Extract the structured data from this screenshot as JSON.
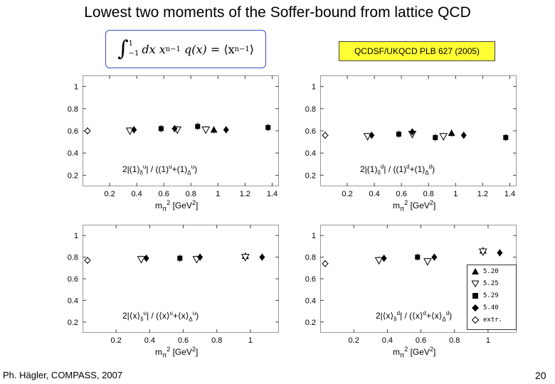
{
  "slide": {
    "title": "Lowest two moments of the Soffer-bound from lattice QCD",
    "reference": "QCDSF/UKQCD PLB 627 (2005)",
    "footer_left": "Ph. Hägler, COMPASS, 2007",
    "page_number": "20"
  },
  "formula": {
    "upper": "1",
    "lower": "−1",
    "body": "dx x",
    "exp": "n−1",
    "q": "q(x)",
    "equals": "=",
    "rhs_open": "⟨x",
    "rhs_close": "⟩"
  },
  "legend": {
    "items": [
      {
        "label": "5.20",
        "marker": "triangle-up"
      },
      {
        "label": "5.25",
        "marker": "triangle-down"
      },
      {
        "label": "5.29",
        "marker": "square"
      },
      {
        "label": "5.40",
        "marker": "diamond"
      },
      {
        "label": "extr.",
        "marker": "diamond-open"
      }
    ]
  },
  "panel_labels": {
    "xaxis_prefix": "m",
    "xaxis_sub": "π",
    "xaxis_sup": "2",
    "xaxis_unit": "[GeV",
    "xaxis_unit_sup": "2",
    "xaxis_close": "]",
    "tl": {
      "num": "2|(1)",
      "num_sup": "u",
      "num_sub": "δ",
      "sep": "| / ((1)",
      "a_sup": "u",
      "plus": "+(1)",
      "b_sup": "u",
      "b_sub": "Δ",
      "close": ")"
    },
    "tr": {
      "num": "2|(1)",
      "num_sup": "d",
      "num_sub": "δ",
      "sep": "| / ((1)",
      "a_sup": "d",
      "plus": "+(1)",
      "b_sup": "d",
      "b_sub": "Δ",
      "close": ")"
    },
    "bl": {
      "num": "2|⟨x⟩",
      "num_sup": "u",
      "num_sub": "δ",
      "sep": "| / (⟨x⟩",
      "a_sup": "u",
      "plus": "+⟨x⟩",
      "b_sup": "u",
      "b_sub": "Δ",
      "close": ")"
    },
    "br": {
      "num": "2|⟨x⟩",
      "num_sup": "d",
      "num_sub": "δ",
      "sep": "| / (⟨x⟩",
      "a_sup": "d",
      "plus": "+⟨x⟩",
      "b_sup": "d",
      "b_sub": "Δ",
      "close": ")"
    }
  },
  "chart_data": [
    {
      "type": "scatter",
      "panel": "top-left",
      "xlim": [
        0,
        1.45
      ],
      "ylim": [
        0.1,
        1.1
      ],
      "xticks": [
        0.2,
        0.4,
        0.6,
        0.8,
        1,
        1.2,
        1.4
      ],
      "yticks": [
        0.2,
        0.4,
        0.6,
        0.8,
        1
      ],
      "series": [
        {
          "name": "5.20",
          "marker": "triangle-up",
          "points": [
            [
              0.97,
              0.61
            ]
          ]
        },
        {
          "name": "5.25",
          "marker": "triangle-down",
          "points": [
            [
              0.35,
              0.6
            ],
            [
              0.7,
              0.61
            ],
            [
              0.91,
              0.61
            ]
          ]
        },
        {
          "name": "5.29",
          "marker": "square",
          "points": [
            [
              0.58,
              0.62
            ],
            [
              0.85,
              0.64
            ],
            [
              1.37,
              0.63
            ]
          ]
        },
        {
          "name": "5.40",
          "marker": "diamond",
          "points": [
            [
              0.38,
              0.61
            ],
            [
              0.68,
              0.62
            ],
            [
              1.06,
              0.61
            ]
          ]
        },
        {
          "name": "extr.",
          "marker": "diamond-open",
          "points": [
            [
              0.0,
              0.6
            ]
          ]
        }
      ]
    },
    {
      "type": "scatter",
      "panel": "top-right",
      "xlim": [
        0,
        1.45
      ],
      "ylim": [
        0.1,
        1.1
      ],
      "xticks": [
        0.2,
        0.4,
        0.6,
        0.8,
        1,
        1.2,
        1.4
      ],
      "yticks": [
        0.2,
        0.4,
        0.6,
        0.8,
        1
      ],
      "series": [
        {
          "name": "5.20",
          "marker": "triangle-up",
          "points": [
            [
              0.97,
              0.58
            ]
          ]
        },
        {
          "name": "5.25",
          "marker": "triangle-down",
          "points": [
            [
              0.35,
              0.55
            ],
            [
              0.68,
              0.57
            ],
            [
              0.91,
              0.55
            ]
          ]
        },
        {
          "name": "5.29",
          "marker": "square",
          "points": [
            [
              0.58,
              0.57
            ],
            [
              0.85,
              0.54
            ],
            [
              1.37,
              0.54
            ]
          ]
        },
        {
          "name": "5.40",
          "marker": "diamond",
          "points": [
            [
              0.38,
              0.56
            ],
            [
              0.68,
              0.59
            ],
            [
              1.06,
              0.56
            ]
          ]
        },
        {
          "name": "extr.",
          "marker": "diamond-open",
          "points": [
            [
              0.0,
              0.56
            ]
          ]
        }
      ]
    },
    {
      "type": "scatter",
      "panel": "bottom-left",
      "xlim": [
        0,
        1.17
      ],
      "ylim": [
        0.1,
        1.1
      ],
      "xticks": [
        0.2,
        0.4,
        0.6,
        0.8,
        1
      ],
      "yticks": [
        0.2,
        0.4,
        0.6,
        0.8,
        1
      ],
      "series": [
        {
          "name": "5.20",
          "marker": "triangle-up",
          "points": [
            [
              0.97,
              0.81
            ]
          ]
        },
        {
          "name": "5.25",
          "marker": "triangle-down",
          "points": [
            [
              0.35,
              0.78
            ],
            [
              0.68,
              0.78
            ],
            [
              0.97,
              0.8
            ]
          ]
        },
        {
          "name": "5.29",
          "marker": "square",
          "points": [
            [
              0.58,
              0.79
            ]
          ]
        },
        {
          "name": "5.40",
          "marker": "diamond",
          "points": [
            [
              0.38,
              0.79
            ],
            [
              0.7,
              0.8
            ],
            [
              1.07,
              0.8
            ]
          ]
        },
        {
          "name": "extr.",
          "marker": "diamond-open",
          "points": [
            [
              0.0,
              0.77
            ]
          ]
        }
      ]
    },
    {
      "type": "scatter",
      "panel": "bottom-right",
      "xlim": [
        0,
        1.17
      ],
      "ylim": [
        0.1,
        1.1
      ],
      "xticks": [
        0.2,
        0.4,
        0.6,
        0.8,
        1
      ],
      "yticks": [
        0.2,
        0.4,
        0.6,
        0.8,
        1
      ],
      "series": [
        {
          "name": "5.20",
          "marker": "triangle-up",
          "points": [
            [
              0.97,
              0.86
            ]
          ]
        },
        {
          "name": "5.25",
          "marker": "triangle-down",
          "points": [
            [
              0.35,
              0.77
            ],
            [
              0.64,
              0.76
            ],
            [
              0.97,
              0.85
            ]
          ]
        },
        {
          "name": "5.29",
          "marker": "square",
          "points": [
            [
              0.58,
              0.8
            ]
          ]
        },
        {
          "name": "5.40",
          "marker": "diamond",
          "points": [
            [
              0.38,
              0.79
            ],
            [
              0.68,
              0.8
            ],
            [
              1.07,
              0.84
            ]
          ]
        },
        {
          "name": "extr.",
          "marker": "diamond-open",
          "points": [
            [
              0.0,
              0.74
            ]
          ]
        }
      ]
    }
  ]
}
